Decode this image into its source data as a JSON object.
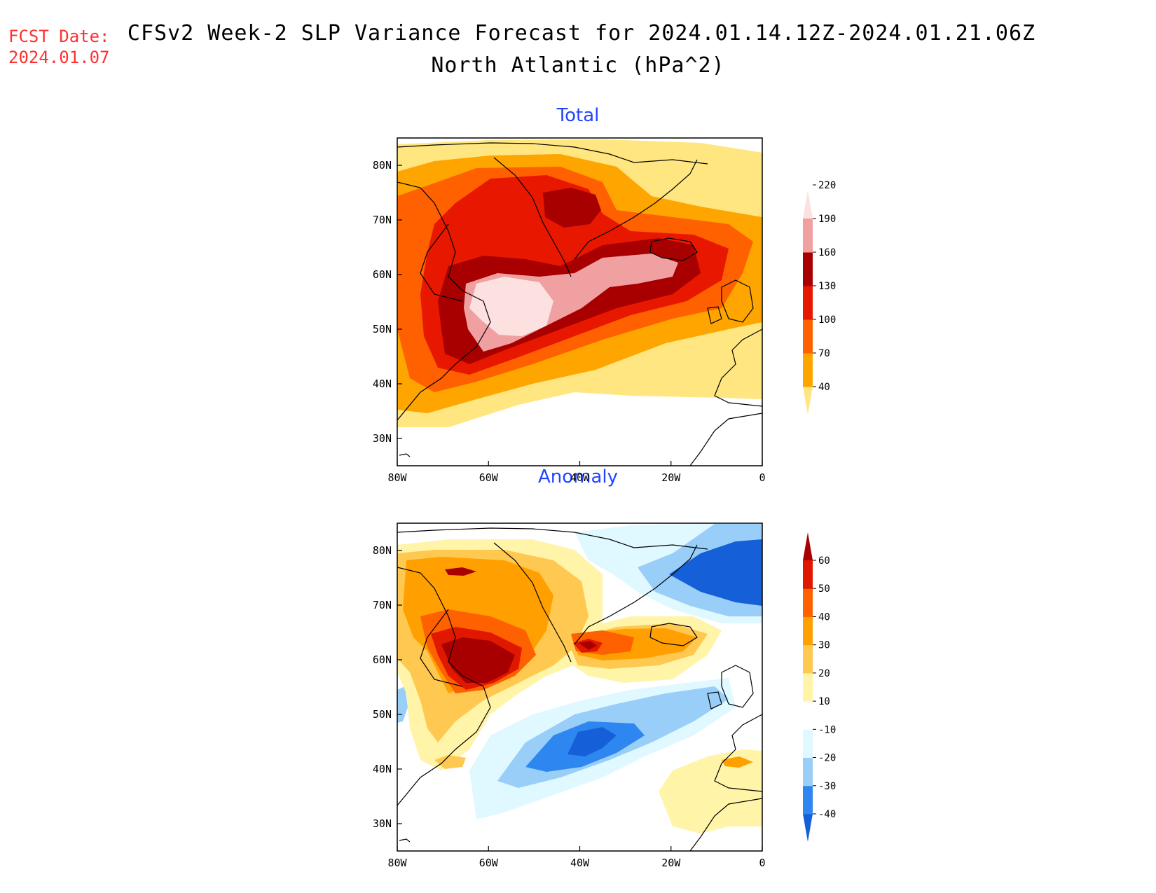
{
  "header": {
    "fcst_label": "FCST Date:",
    "fcst_date": "2024.01.07",
    "title": "CFSv2 Week-2 SLP Variance Forecast for 2024.01.14.12Z-2024.01.21.06Z",
    "subtitle": "North Atlantic (hPa^2)"
  },
  "axes": {
    "lat_ticks": [
      "30N",
      "40N",
      "50N",
      "60N",
      "70N",
      "80N"
    ],
    "lat_values": [
      30,
      40,
      50,
      60,
      70,
      80
    ],
    "lon_ticks": [
      "80W",
      "60W",
      "40W",
      "20W",
      "0"
    ],
    "lon_values": [
      -80,
      -60,
      -40,
      -20,
      0
    ],
    "lat_range": [
      25,
      85
    ],
    "lon_range": [
      -80,
      0
    ]
  },
  "panels": [
    {
      "title": "Total",
      "colorbar": {
        "labels": [
          "40",
          "70",
          "100",
          "130",
          "160",
          "190",
          "220"
        ],
        "colors": [
          "#ffe680",
          "#ffa500",
          "#ff6000",
          "#e81800",
          "#a80000",
          "#f0a0a0",
          "#fde0e0"
        ]
      }
    },
    {
      "title": "Anomaly",
      "colorbar": {
        "labels": [
          "-40",
          "-30",
          "-20",
          "-10",
          "10",
          "20",
          "30",
          "40",
          "50",
          "60"
        ],
        "colors": [
          "#1560d8",
          "#2e86f0",
          "#98cef8",
          "#e0f8ff",
          "#ffffff",
          "#fff4a8",
          "#ffc850",
          "#ffa000",
          "#ff6000",
          "#e01800",
          "#a80000"
        ]
      }
    }
  ]
}
